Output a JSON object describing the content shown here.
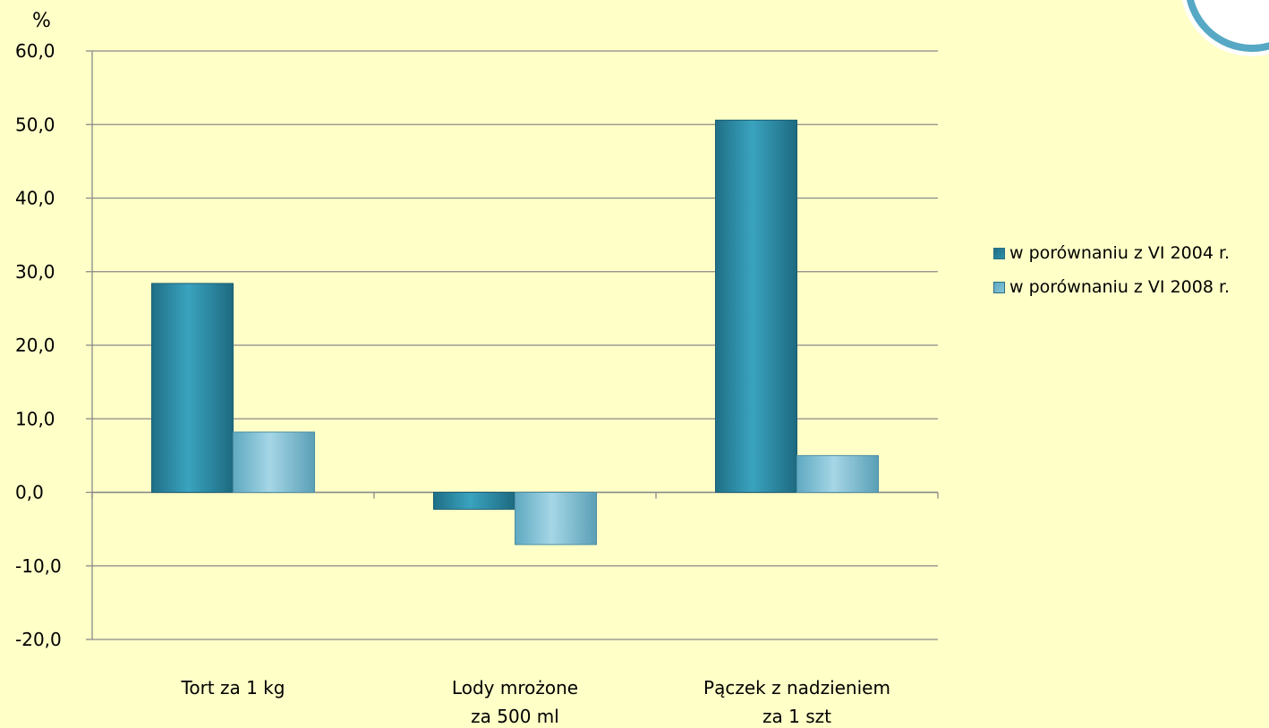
{
  "unit_label": "%",
  "legend": [
    {
      "label": "w porównaniu z VI 2004 r.",
      "color": "#2f8fa8"
    },
    {
      "label": "w porównaniu z VI 2008 r.",
      "color": "#86c4d8"
    }
  ],
  "chart_data": {
    "type": "bar",
    "categories": [
      [
        "Tort za 1 kg"
      ],
      [
        "Lody mrożone",
        "za 500 ml"
      ],
      [
        "Pączek z nadzieniem",
        "za 1 szt"
      ]
    ],
    "series": [
      {
        "name": "w porównaniu z VI 2004 r.",
        "values": [
          28.4,
          -2.3,
          50.6
        ],
        "color": "#2f8fa8"
      },
      {
        "name": "w porównaniu z VI 2008 r.",
        "values": [
          8.2,
          -7.1,
          5.0
        ],
        "color": "#86c4d8"
      }
    ],
    "ylim": [
      -20,
      60
    ],
    "yticks": [
      "60,0",
      "50,0",
      "40,0",
      "30,0",
      "20,0",
      "10,0",
      "0,0",
      "-10,0",
      "-20,0"
    ],
    "ytick_values": [
      60,
      50,
      40,
      30,
      20,
      10,
      0,
      -10,
      -20
    ],
    "ylabel": "%",
    "grid": true,
    "legend_position": "right"
  }
}
